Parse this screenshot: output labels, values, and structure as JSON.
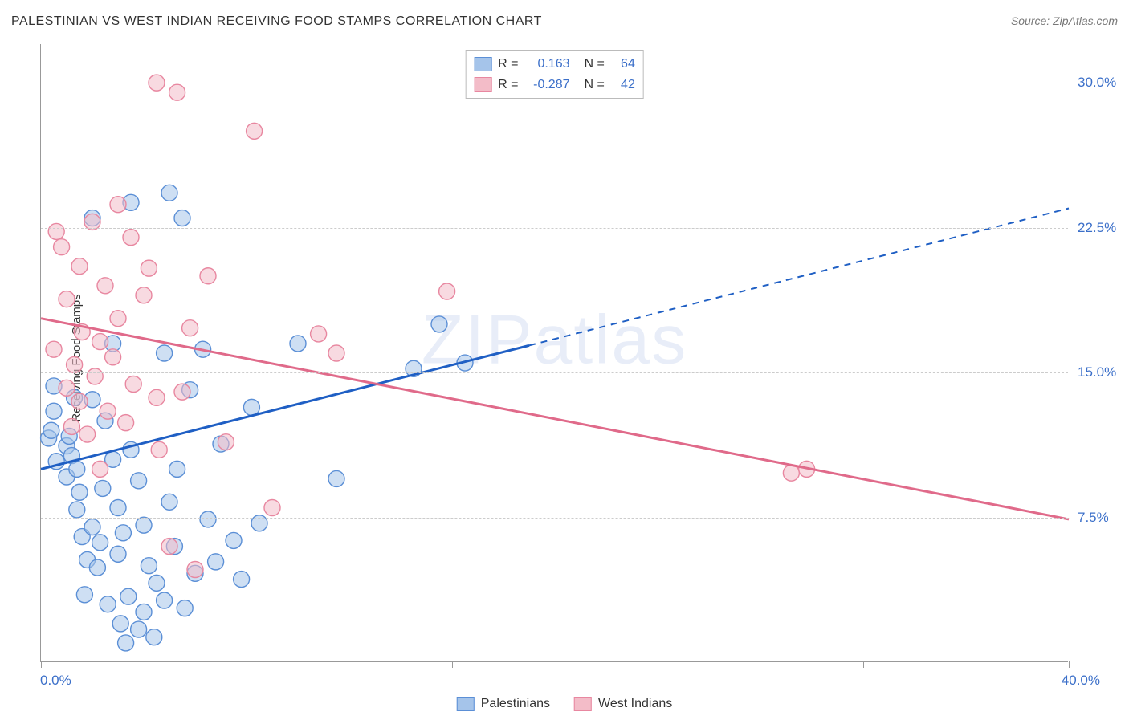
{
  "header": {
    "title": "PALESTINIAN VS WEST INDIAN RECEIVING FOOD STAMPS CORRELATION CHART",
    "source": "Source: ZipAtlas.com"
  },
  "watermark": "ZIPatlas",
  "chart": {
    "type": "scatter",
    "background_color": "#ffffff",
    "grid_color": "#cccccc",
    "axis_color": "#999999",
    "label_color": "#333333",
    "value_color": "#3b6fc9",
    "ylabel": "Receiving Food Stamps",
    "xlim": [
      0,
      40
    ],
    "ylim": [
      0,
      32
    ],
    "x_ticks": [
      0,
      8,
      16,
      24,
      32,
      40
    ],
    "x_tick_labels": {
      "start": "0.0%",
      "end": "40.0%"
    },
    "y_gridlines": [
      7.5,
      15.0,
      22.5,
      30.0
    ],
    "y_tick_labels": [
      "7.5%",
      "15.0%",
      "22.5%",
      "30.0%"
    ],
    "marker_radius": 10,
    "marker_opacity": 0.55,
    "line_width": 3,
    "series": [
      {
        "name": "Palestinians",
        "color_fill": "#a5c4ea",
        "color_stroke": "#5b8fd6",
        "line_color": "#1f5fc4",
        "R": "0.163",
        "N": "64",
        "trend": {
          "x1": 0,
          "y1": 10.0,
          "x2": 19,
          "y2": 16.4,
          "x2_dash": 40,
          "y2_dash": 23.5
        },
        "points": [
          [
            0.3,
            11.6
          ],
          [
            0.4,
            12.0
          ],
          [
            0.5,
            13.0
          ],
          [
            0.5,
            14.3
          ],
          [
            0.6,
            10.4
          ],
          [
            1.0,
            9.6
          ],
          [
            1.0,
            11.2
          ],
          [
            1.1,
            11.7
          ],
          [
            1.2,
            10.7
          ],
          [
            1.3,
            13.7
          ],
          [
            1.4,
            7.9
          ],
          [
            1.4,
            10.0
          ],
          [
            1.5,
            8.8
          ],
          [
            1.6,
            6.5
          ],
          [
            1.7,
            3.5
          ],
          [
            1.8,
            5.3
          ],
          [
            2.0,
            7.0
          ],
          [
            2.0,
            13.6
          ],
          [
            2.0,
            23.0
          ],
          [
            2.2,
            4.9
          ],
          [
            2.3,
            6.2
          ],
          [
            2.4,
            9.0
          ],
          [
            2.5,
            12.5
          ],
          [
            2.6,
            3.0
          ],
          [
            2.8,
            10.5
          ],
          [
            2.8,
            16.5
          ],
          [
            3.0,
            5.6
          ],
          [
            3.0,
            8.0
          ],
          [
            3.1,
            2.0
          ],
          [
            3.2,
            6.7
          ],
          [
            3.4,
            3.4
          ],
          [
            3.5,
            11.0
          ],
          [
            3.5,
            23.8
          ],
          [
            3.8,
            1.7
          ],
          [
            3.8,
            9.4
          ],
          [
            4.0,
            7.1
          ],
          [
            4.0,
            2.6
          ],
          [
            4.2,
            5.0
          ],
          [
            4.4,
            1.3
          ],
          [
            4.5,
            4.1
          ],
          [
            4.8,
            16.0
          ],
          [
            5.0,
            8.3
          ],
          [
            5.0,
            24.3
          ],
          [
            5.2,
            6.0
          ],
          [
            5.3,
            10.0
          ],
          [
            5.5,
            23.0
          ],
          [
            5.6,
            2.8
          ],
          [
            5.8,
            14.1
          ],
          [
            6.0,
            4.6
          ],
          [
            6.3,
            16.2
          ],
          [
            6.5,
            7.4
          ],
          [
            6.8,
            5.2
          ],
          [
            7.0,
            11.3
          ],
          [
            7.5,
            6.3
          ],
          [
            7.8,
            4.3
          ],
          [
            8.2,
            13.2
          ],
          [
            8.5,
            7.2
          ],
          [
            10.0,
            16.5
          ],
          [
            11.5,
            9.5
          ],
          [
            14.5,
            15.2
          ],
          [
            15.5,
            17.5
          ],
          [
            16.5,
            15.5
          ],
          [
            4.8,
            3.2
          ],
          [
            3.3,
            1.0
          ]
        ]
      },
      {
        "name": "West Indians",
        "color_fill": "#f3bcc8",
        "color_stroke": "#e887a0",
        "line_color": "#e06a8a",
        "R": "-0.287",
        "N": "42",
        "trend": {
          "x1": 0,
          "y1": 17.8,
          "x2": 40,
          "y2": 7.4
        },
        "points": [
          [
            0.5,
            16.2
          ],
          [
            0.6,
            22.3
          ],
          [
            0.8,
            21.5
          ],
          [
            1.0,
            14.2
          ],
          [
            1.0,
            18.8
          ],
          [
            1.2,
            12.2
          ],
          [
            1.3,
            15.4
          ],
          [
            1.5,
            20.5
          ],
          [
            1.5,
            13.5
          ],
          [
            1.6,
            17.1
          ],
          [
            1.8,
            11.8
          ],
          [
            2.0,
            22.8
          ],
          [
            2.1,
            14.8
          ],
          [
            2.3,
            16.6
          ],
          [
            2.3,
            10.0
          ],
          [
            2.5,
            19.5
          ],
          [
            2.6,
            13.0
          ],
          [
            2.8,
            15.8
          ],
          [
            3.0,
            23.7
          ],
          [
            3.0,
            17.8
          ],
          [
            3.3,
            12.4
          ],
          [
            3.5,
            22.0
          ],
          [
            3.6,
            14.4
          ],
          [
            4.0,
            19.0
          ],
          [
            4.2,
            20.4
          ],
          [
            4.5,
            13.7
          ],
          [
            4.6,
            11.0
          ],
          [
            5.0,
            6.0
          ],
          [
            5.3,
            29.5
          ],
          [
            5.5,
            14.0
          ],
          [
            5.8,
            17.3
          ],
          [
            6.0,
            4.8
          ],
          [
            6.5,
            20.0
          ],
          [
            7.2,
            11.4
          ],
          [
            8.3,
            27.5
          ],
          [
            9.0,
            8.0
          ],
          [
            10.8,
            17.0
          ],
          [
            11.5,
            16.0
          ],
          [
            15.8,
            19.2
          ],
          [
            29.2,
            9.8
          ],
          [
            29.8,
            10.0
          ],
          [
            4.5,
            30.0
          ]
        ]
      }
    ]
  }
}
